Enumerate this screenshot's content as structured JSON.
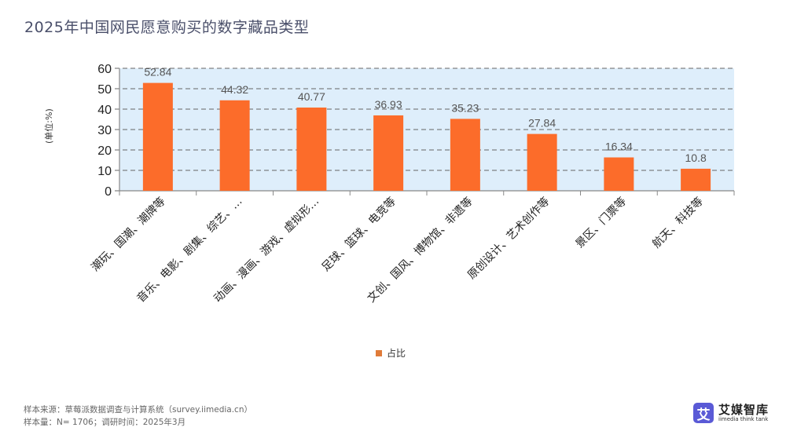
{
  "title": "2025年中国网民愿意购买的数字藏品类型",
  "chart_data": {
    "type": "bar",
    "title": "2025年中国网民愿意购买的数字藏品类型",
    "xlabel": "",
    "ylabel": "(单位:%)",
    "ylim": [
      0,
      60
    ],
    "yticks": [
      0,
      10,
      20,
      30,
      40,
      50,
      60
    ],
    "grid": true,
    "legend_position": "bottom",
    "categories": [
      "潮玩、国潮、潮牌等",
      "音乐、电影、剧集、综艺、…",
      "动画、漫画、游戏、虚拟形…",
      "足球、篮球、电竞等",
      "文创、国风、博物馆、非遗等",
      "原创设计、艺术创作等",
      "景区、门票等",
      "航天、科技等"
    ],
    "series": [
      {
        "name": "占比",
        "color": "#fc6c2a",
        "values": [
          52.84,
          44.32,
          40.77,
          36.93,
          35.23,
          27.84,
          16.34,
          10.8
        ]
      }
    ],
    "value_labels": [
      "52.84",
      "44.32",
      "40.77",
      "36.93",
      "35.23",
      "27.84",
      "16.34",
      "10.8"
    ]
  },
  "legend": {
    "label": "占比"
  },
  "footer": {
    "source": "样本来源：草莓派数据调查与计算系统（survey.iimedia.cn）",
    "sample": "样本量：N= 1706；调研时间：2025年3月"
  },
  "logo": {
    "mark": "艾",
    "name": "艾媒智库",
    "subtitle": "iimedia think tank"
  }
}
